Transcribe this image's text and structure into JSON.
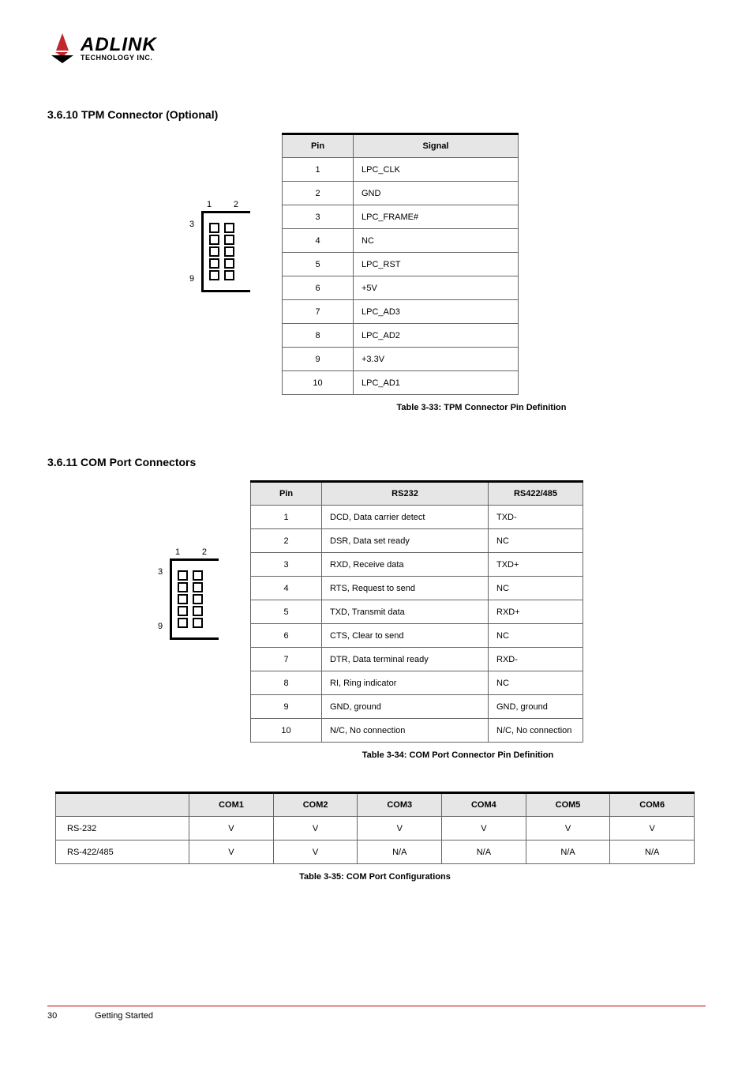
{
  "logo": {
    "main": "ADLINK",
    "sub": "TECHNOLOGY INC.",
    "colors": {
      "red": "#c1272d",
      "black": "#000000"
    }
  },
  "section1": {
    "title": "3.6.10   TPM Connector (Optional)",
    "connector": {
      "top_labels": [
        "1",
        "2"
      ],
      "left_labels": [
        "3",
        "9"
      ]
    },
    "table": {
      "headers": [
        "Pin",
        "Signal"
      ],
      "rows": [
        [
          "1",
          "LPC_CLK"
        ],
        [
          "2",
          "GND"
        ],
        [
          "3",
          "LPC_FRAME#"
        ],
        [
          "4",
          "NC"
        ],
        [
          "5",
          "LPC_RST"
        ],
        [
          "6",
          "+5V"
        ],
        [
          "7",
          "LPC_AD3"
        ],
        [
          "8",
          "LPC_AD2"
        ],
        [
          "9",
          "+3.3V"
        ],
        [
          "10",
          "LPC_AD1"
        ]
      ]
    },
    "caption": "Table 3-33: TPM Connector Pin Definition"
  },
  "section2": {
    "title": "3.6.11   COM Port Connectors",
    "connector": {
      "top_labels": [
        "1",
        "2"
      ],
      "left_labels": [
        "3",
        "9"
      ]
    },
    "table": {
      "headers": [
        "Pin",
        "RS232",
        "RS422/485"
      ],
      "rows": [
        [
          "1",
          "DCD, Data carrier detect",
          "TXD-"
        ],
        [
          "2",
          "DSR, Data set ready",
          "NC"
        ],
        [
          "3",
          "RXD, Receive data",
          "TXD+"
        ],
        [
          "4",
          "RTS, Request to send",
          "NC"
        ],
        [
          "5",
          "TXD, Transmit data",
          "RXD+"
        ],
        [
          "6",
          "CTS, Clear to send",
          "NC"
        ],
        [
          "7",
          "DTR, Data terminal ready",
          "RXD-"
        ],
        [
          "8",
          "RI, Ring indicator",
          "NC"
        ],
        [
          "9",
          "GND, ground",
          "GND, ground"
        ],
        [
          "10",
          "N/C, No connection",
          "N/C, No connection"
        ]
      ]
    },
    "caption": "Table 3-34: COM Port Connector Pin Definition"
  },
  "section3": {
    "table": {
      "headers": [
        "",
        "COM1",
        "COM2",
        "COM3",
        "COM4",
        "COM5",
        "COM6"
      ],
      "rows": [
        [
          "RS-232",
          "V",
          "V",
          "V",
          "V",
          "V",
          "V"
        ],
        [
          "RS-422/485",
          "V",
          "V",
          "N/A",
          "N/A",
          "N/A",
          "N/A"
        ]
      ]
    },
    "caption": "Table 3-35: COM Port Configurations"
  },
  "footer": {
    "page": "30",
    "title": "Getting Started"
  }
}
